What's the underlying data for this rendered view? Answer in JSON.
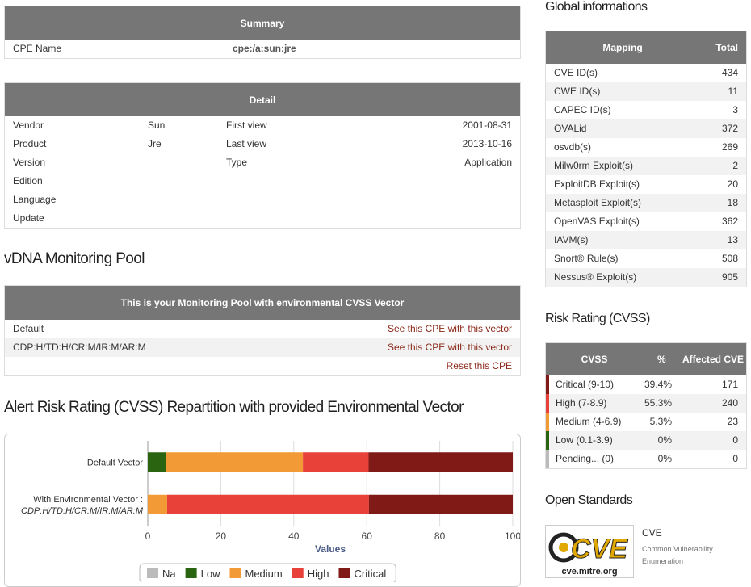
{
  "summary": {
    "title": "Summary",
    "rows": [
      [
        "CPE Name",
        "cpe:/a:sun:jre"
      ]
    ]
  },
  "detail": {
    "title": "Detail",
    "rows": [
      [
        "Vendor",
        "Sun",
        "First view",
        "2001-08-31"
      ],
      [
        "Product",
        "Jre",
        "Last view",
        "2013-10-16"
      ],
      [
        "Version",
        null,
        "Type",
        "Application"
      ],
      [
        "Edition"
      ],
      [
        "Language"
      ],
      [
        "Update"
      ]
    ]
  },
  "monitoring": {
    "heading": "vDNA Monitoring Pool",
    "title": "This is your Monitoring Pool with environmental CVSS Vector",
    "rows": [
      [
        "Default",
        "See this CPE with this vector"
      ],
      [
        "CDP:H/TD:H/CR:M/IR:M/AR:M",
        "See this CPE with this vector"
      ],
      [
        null,
        "Reset this CPE"
      ]
    ]
  },
  "chart_heading": "Alert Risk Rating (CVSS) Repartition with provided Environmental Vector",
  "chart_data": {
    "type": "bar",
    "orientation": "horizontal",
    "stacked": true,
    "categories": [
      "Default Vector",
      "With Environmental Vector :"
    ],
    "category_sublabels": [
      null,
      "CDP:H/TD:H/CR:M/IR:M/AR:M"
    ],
    "series": [
      {
        "name": "Na",
        "color": "#bbbbbb",
        "values": [
          0,
          0
        ]
      },
      {
        "name": "Low",
        "color": "#2b6411",
        "values": [
          5,
          0
        ]
      },
      {
        "name": "Medium",
        "color": "#f29a36",
        "values": [
          37.5,
          5.3
        ]
      },
      {
        "name": "High",
        "color": "#e8413a",
        "values": [
          18,
          55.3
        ]
      },
      {
        "name": "Critical",
        "color": "#7f1a16",
        "values": [
          39.5,
          39.4
        ]
      }
    ],
    "xlim": [
      0,
      100
    ],
    "xticks": [
      0,
      20,
      40,
      60,
      80,
      100
    ],
    "x_label": "Values",
    "grid": true,
    "legend": "bottom"
  },
  "global": {
    "heading": "Global informations",
    "columns": [
      "Mapping",
      "Total"
    ],
    "rows": [
      [
        "CVE ID(s)",
        434
      ],
      [
        "CWE ID(s)",
        11
      ],
      [
        "CAPEC ID(s)",
        3
      ],
      [
        "OVALid",
        372
      ],
      [
        "osvdb(s)",
        269
      ],
      [
        "Milw0rm Exploit(s)",
        2
      ],
      [
        "ExploitDB Exploit(s)",
        20
      ],
      [
        "Metasploit Exploit(s)",
        18
      ],
      [
        "OpenVAS Exploit(s)",
        362
      ],
      [
        "IAVM(s)",
        13
      ],
      [
        "Snort® Rule(s)",
        508
      ],
      [
        "Nessus® Exploit(s)",
        905
      ]
    ]
  },
  "risk": {
    "heading": "Risk Rating (CVSS)",
    "columns": [
      "CVSS",
      "%",
      "Affected CVE"
    ],
    "rows": [
      {
        "label": "Critical (9-10)",
        "percent": "39.4%",
        "affected": 171,
        "color": "#7f1a16"
      },
      {
        "label": "High (7-8.9)",
        "percent": "55.3%",
        "affected": 240,
        "color": "#e8413a"
      },
      {
        "label": "Medium (4-6.9)",
        "percent": "5.3%",
        "affected": 23,
        "color": "#f29a36"
      },
      {
        "label": "Low (0.1-3.9)",
        "percent": "0%",
        "affected": 0,
        "color": "#2b6411"
      },
      {
        "label": "Pending... (0)",
        "percent": "0%",
        "affected": 0,
        "color": "#bbbbbb"
      }
    ]
  },
  "open_standards": {
    "heading": "Open Standards",
    "logo_text": "CVE",
    "logo_url": "cve.mitre.org",
    "name": "CVE",
    "description": [
      "Common Vulnerability",
      "Enumeration"
    ]
  }
}
